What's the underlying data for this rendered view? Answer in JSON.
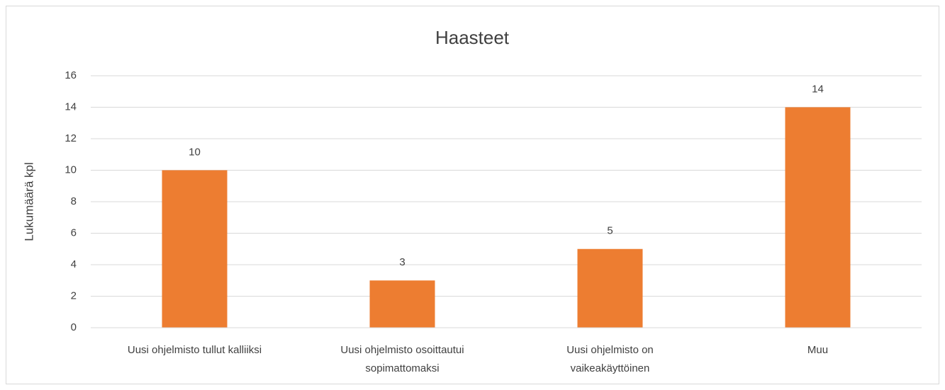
{
  "chart_data": {
    "type": "bar",
    "title": "Haasteet",
    "y_label": "Lukumäärä kpl",
    "categories": [
      "Uusi ohjelmisto tullut kalliiksi",
      "Uusi ohjelmisto osoittautui sopimattomaksi",
      "Uusi ohjelmisto on vaikeakäyttöinen",
      "Muu"
    ],
    "values": [
      10,
      3,
      5,
      14
    ],
    "color": "#ed7d31",
    "ylim": [
      0,
      16
    ],
    "yticks": [
      0,
      2,
      4,
      6,
      8,
      10,
      12,
      14,
      16
    ],
    "grid": true,
    "data_labels": true
  }
}
